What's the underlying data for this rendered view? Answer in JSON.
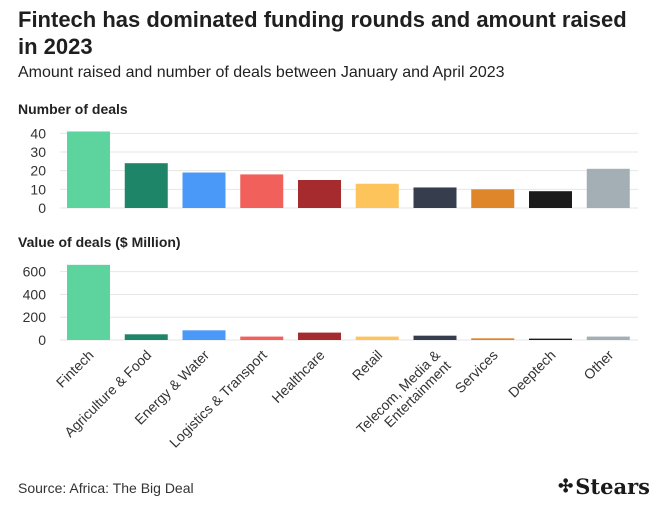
{
  "header": {
    "title": "Fintech has dominated funding rounds and amount raised in 2023",
    "subtitle": "Amount raised and number of deals between January and April 2023"
  },
  "chart_data": [
    {
      "type": "bar",
      "title": "Number of deals",
      "categories": [
        "Fintech",
        "Agriculture & Food",
        "Energy & Water",
        "Logistics & Transport",
        "Healthcare",
        "Retail",
        "Telecom, Media & Entertainment",
        "Services",
        "Deeptech",
        "Other"
      ],
      "values": [
        41,
        24,
        19,
        18,
        15,
        13,
        11,
        10,
        9,
        21
      ],
      "ylim": [
        0,
        45
      ],
      "yticks": [
        0,
        10,
        20,
        30,
        40
      ],
      "grid": true,
      "colors": [
        "#5dd39e",
        "#1e8568",
        "#4a98f7",
        "#f1605a",
        "#a62b2f",
        "#fdc45c",
        "#363d4c",
        "#e0862a",
        "#1b1b1b",
        "#a4aeb5"
      ]
    },
    {
      "type": "bar",
      "title": "Value of deals ($ Million)",
      "categories": [
        "Fintech",
        "Agriculture & Food",
        "Energy & Water",
        "Logistics & Transport",
        "Healthcare",
        "Retail",
        "Telecom, Media & Entertainment",
        "Services",
        "Deeptech",
        "Other"
      ],
      "tick_labels": [
        "Fintech",
        "Agriculture & Food",
        "Energy & Water",
        "Logistics & Transport",
        "Healthcare",
        "Retail",
        "Telecom, Media &\nEntertainment",
        "Services",
        "Deeptech",
        "Other"
      ],
      "values": [
        660,
        50,
        85,
        30,
        65,
        30,
        38,
        15,
        12,
        30
      ],
      "ylim": [
        0,
        720
      ],
      "yticks": [
        0,
        200,
        400,
        600
      ],
      "grid": true,
      "colors": [
        "#5dd39e",
        "#1e8568",
        "#4a98f7",
        "#f1605a",
        "#a62b2f",
        "#fdc45c",
        "#363d4c",
        "#e0862a",
        "#1b1b1b",
        "#a4aeb5"
      ]
    }
  ],
  "footer": {
    "source": "Source: Africa: The Big Deal",
    "logo_text": "Stears",
    "logo_icon": "stears-logo-icon"
  }
}
